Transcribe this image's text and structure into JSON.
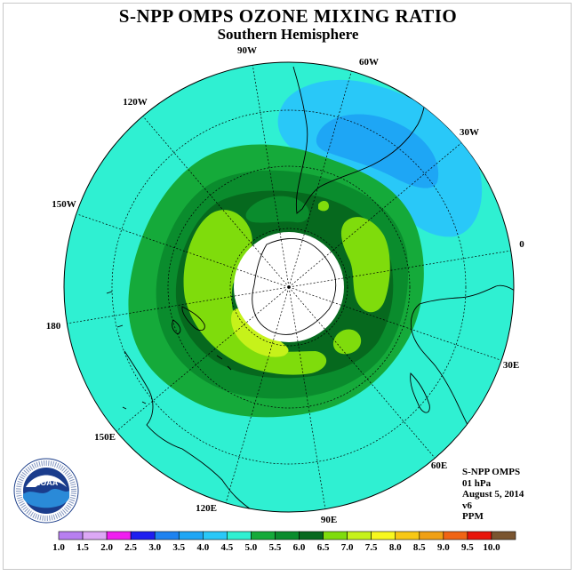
{
  "title": "S-NPP OMPS OZONE MIXING RATIO",
  "subtitle": "Southern Hemisphere",
  "logo": {
    "text": "NOAA",
    "ring_text": "NATIONAL OCEANIC AND ATMOSPHERIC ADMINISTRATION • U.S. DEPARTMENT OF COMMERCE •"
  },
  "longitude_labels": [
    {
      "label": "90W"
    },
    {
      "label": "60W"
    },
    {
      "label": "30W"
    },
    {
      "label": "0"
    },
    {
      "label": "30E"
    },
    {
      "label": "60E"
    },
    {
      "label": "90E"
    },
    {
      "label": "120E"
    },
    {
      "label": "150E"
    },
    {
      "label": "180"
    },
    {
      "label": "150W"
    },
    {
      "label": "120W"
    }
  ],
  "info": {
    "instrument": "S-NPP OMPS",
    "level": "01 hPa",
    "date": "August 5, 2014",
    "version": "v6",
    "units": "PPM"
  },
  "colorbar": {
    "labels": [
      "1.0",
      "1.5",
      "2.0",
      "2.5",
      "3.0",
      "3.5",
      "4.0",
      "4.5",
      "5.0",
      "5.5",
      "6.0",
      "6.5",
      "7.0",
      "7.5",
      "8.0",
      "8.5",
      "9.0",
      "9.5",
      "10.0"
    ],
    "colors": [
      "#b77ff0",
      "#dca8f5",
      "#f01ef0",
      "#1e1ef0",
      "#1e82f0",
      "#1ea6f5",
      "#29c8f8",
      "#2ff0d2",
      "#15aa3a",
      "#0a8c2d",
      "#06691e",
      "#7fdc0c",
      "#c6f21a",
      "#f8f81e",
      "#f8c814",
      "#f0a014",
      "#f06414",
      "#e8140a",
      "#7a5530"
    ]
  }
}
